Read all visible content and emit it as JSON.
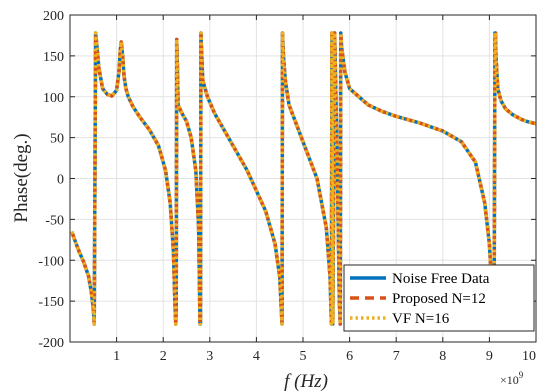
{
  "chart_data": {
    "type": "line",
    "title": "",
    "xlabel": "f (Hz)",
    "ylabel": "Phase(deg.)",
    "x_exponent_label": "×10",
    "x_exponent_power": "9",
    "xlim": [
      0.0,
      10.0
    ],
    "ylim": [
      -200,
      200
    ],
    "xticks": [
      1,
      2,
      3,
      4,
      5,
      6,
      7,
      8,
      9,
      10
    ],
    "yticks": [
      -200,
      -150,
      -100,
      -50,
      0,
      50,
      100,
      150,
      200
    ],
    "xtick_labels": [
      "1",
      "2",
      "3",
      "4",
      "5",
      "6",
      "7",
      "8",
      "9",
      "10"
    ],
    "ytick_labels": [
      "-200",
      "-150",
      "-100",
      "-50",
      "0",
      "50",
      "100",
      "150",
      "200"
    ],
    "grid": true,
    "legend_position": "bottom-right",
    "x": [
      0.04,
      0.1,
      0.2,
      0.3,
      0.4,
      0.46,
      0.5,
      0.52,
      0.55,
      0.58,
      0.62,
      0.7,
      0.8,
      0.9,
      1.0,
      1.05,
      1.08,
      1.1,
      1.13,
      1.16,
      1.2,
      1.25,
      1.35,
      1.5,
      1.7,
      1.9,
      2.05,
      2.15,
      2.22,
      2.25,
      2.27,
      2.28,
      2.29,
      2.3,
      2.32,
      2.4,
      2.5,
      2.6,
      2.7,
      2.76,
      2.79,
      2.8,
      2.81,
      2.82,
      2.85,
      2.95,
      3.1,
      3.4,
      3.8,
      4.2,
      4.4,
      4.5,
      4.55,
      4.56,
      4.58,
      4.62,
      4.7,
      4.9,
      5.1,
      5.3,
      5.5,
      5.58,
      5.61,
      5.62,
      5.64,
      5.68,
      5.74,
      5.78,
      5.8,
      5.81,
      5.83,
      5.9,
      6.0,
      6.2,
      6.4,
      6.7,
      7.0,
      7.5,
      8.0,
      8.4,
      8.7,
      8.9,
      9.0,
      9.06,
      9.1,
      9.12,
      9.13,
      9.14,
      9.18,
      9.25,
      9.35,
      9.5,
      9.7,
      9.85,
      10.0
    ],
    "series": [
      {
        "name": "Noise Free Data",
        "color": "#0072BD",
        "style": "solid",
        "values": [
          -65,
          -75,
          -90,
          -103,
          -120,
          -140,
          -160,
          -178,
          178,
          160,
          135,
          110,
          103,
          101,
          108,
          130,
          158,
          167,
          150,
          125,
          110,
          100,
          88,
          75,
          60,
          40,
          10,
          -30,
          -90,
          -150,
          -178,
          -150,
          170,
          150,
          90,
          80,
          70,
          50,
          10,
          -60,
          -178,
          -178,
          178,
          160,
          120,
          100,
          80,
          50,
          10,
          -40,
          -80,
          -120,
          -178,
          178,
          150,
          120,
          90,
          60,
          30,
          0,
          -60,
          -120,
          -178,
          178,
          -178,
          178,
          0,
          -150,
          -178,
          178,
          160,
          130,
          110,
          100,
          90,
          82,
          76,
          68,
          58,
          45,
          20,
          -30,
          -80,
          -140,
          -178,
          178,
          178,
          150,
          110,
          95,
          85,
          78,
          72,
          69,
          67
        ]
      },
      {
        "name": "Proposed N=12",
        "color": "#D95319",
        "style": "dashed",
        "values": [
          -65,
          -75,
          -90,
          -103,
          -120,
          -140,
          -160,
          -178,
          178,
          160,
          135,
          110,
          103,
          101,
          108,
          130,
          158,
          167,
          150,
          125,
          110,
          100,
          88,
          75,
          60,
          40,
          10,
          -30,
          -90,
          -150,
          -178,
          -150,
          170,
          150,
          90,
          80,
          70,
          50,
          10,
          -60,
          -178,
          -178,
          178,
          160,
          120,
          100,
          80,
          50,
          10,
          -40,
          -80,
          -120,
          -178,
          178,
          150,
          120,
          90,
          60,
          30,
          0,
          -60,
          -120,
          -178,
          178,
          -178,
          178,
          0,
          -150,
          -178,
          178,
          160,
          130,
          110,
          100,
          90,
          82,
          76,
          68,
          58,
          45,
          20,
          -30,
          -80,
          -140,
          -178,
          178,
          178,
          150,
          110,
          95,
          85,
          78,
          72,
          69,
          67
        ]
      },
      {
        "name": "VF N=16",
        "color": "#EDB120",
        "style": "dotted",
        "values": [
          -65,
          -75,
          -90,
          -103,
          -120,
          -140,
          -160,
          -178,
          178,
          160,
          135,
          110,
          103,
          101,
          108,
          130,
          158,
          167,
          150,
          125,
          110,
          100,
          88,
          75,
          60,
          40,
          10,
          -30,
          -90,
          -150,
          -178,
          -150,
          170,
          150,
          90,
          80,
          70,
          50,
          10,
          -60,
          -178,
          -178,
          178,
          160,
          120,
          100,
          80,
          50,
          10,
          -40,
          -80,
          -120,
          -178,
          178,
          150,
          120,
          90,
          60,
          30,
          0,
          -60,
          -120,
          -178,
          178,
          -178,
          178,
          0,
          -150,
          -178,
          178,
          160,
          130,
          110,
          100,
          90,
          82,
          76,
          68,
          58,
          45,
          20,
          -30,
          -80,
          -140,
          -178,
          178,
          178,
          150,
          110,
          95,
          85,
          78,
          72,
          69,
          67
        ]
      }
    ]
  }
}
